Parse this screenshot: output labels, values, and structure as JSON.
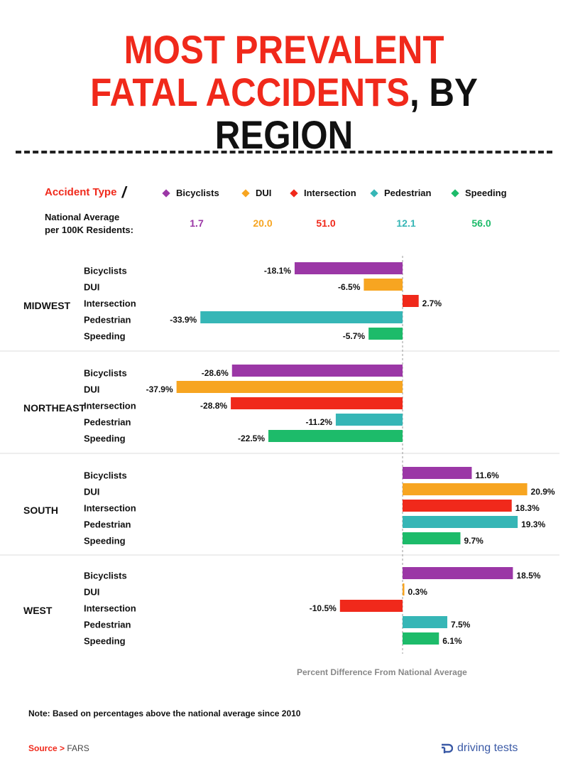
{
  "title": {
    "line1": "MOST PREVALENT",
    "line2_red": "FATAL ACCIDENTS",
    "line2_black": ", BY REGION"
  },
  "legend": {
    "label": "Accident Type",
    "slash": "/",
    "items": [
      {
        "name": "Bicyclists",
        "color": "#9b37a6"
      },
      {
        "name": "DUI",
        "color": "#f7a521"
      },
      {
        "name": "Intersection",
        "color": "#f0291b"
      },
      {
        "name": "Pedestrian",
        "color": "#36b6b6"
      },
      {
        "name": "Speeding",
        "color": "#1dbb6a"
      }
    ]
  },
  "national_average": {
    "label_line1": "National Average",
    "label_line2": "per 100K Residents:",
    "values": [
      "1.7",
      "20.0",
      "51.0",
      "12.1",
      "56.0"
    ]
  },
  "chart_data": {
    "type": "bar",
    "orientation": "horizontal",
    "unit": "%",
    "xlabel": "Percent Difference From National Average",
    "categories": [
      "Bicyclists",
      "DUI",
      "Intersection",
      "Pedestrian",
      "Speeding"
    ],
    "groups": [
      {
        "name": "MIDWEST",
        "values": [
          -18.1,
          -6.5,
          2.7,
          -33.9,
          -5.7
        ],
        "labels": [
          "-18.1%",
          "-6.5%",
          "2.7%",
          "-33.9%",
          "-5.7%"
        ]
      },
      {
        "name": "NORTHEAST",
        "values": [
          -28.6,
          -37.9,
          -28.8,
          -11.2,
          -22.5
        ],
        "labels": [
          "-28.6%",
          "-37.9%",
          "-28.8%",
          "-11.2%",
          "-22.5%"
        ]
      },
      {
        "name": "SOUTH",
        "values": [
          11.6,
          20.9,
          18.3,
          19.3,
          9.7
        ],
        "labels": [
          "11.6%",
          "20.9%",
          "18.3%",
          "19.3%",
          "9.7%"
        ]
      },
      {
        "name": "WEST",
        "values": [
          18.5,
          0.3,
          -10.5,
          7.5,
          6.1
        ],
        "labels": [
          "18.5%",
          "0.3%",
          "-10.5%",
          "7.5%",
          "6.1%"
        ]
      }
    ],
    "colors": [
      "#9b37a6",
      "#f7a521",
      "#f0291b",
      "#36b6b6",
      "#1dbb6a"
    ]
  },
  "note": "Note: Based on percentages above the national average since 2010",
  "source": {
    "label": "Source >",
    "value": "FARS"
  },
  "brand": {
    "name": "driving tests",
    "icon": "driving-tests-logo-icon"
  }
}
